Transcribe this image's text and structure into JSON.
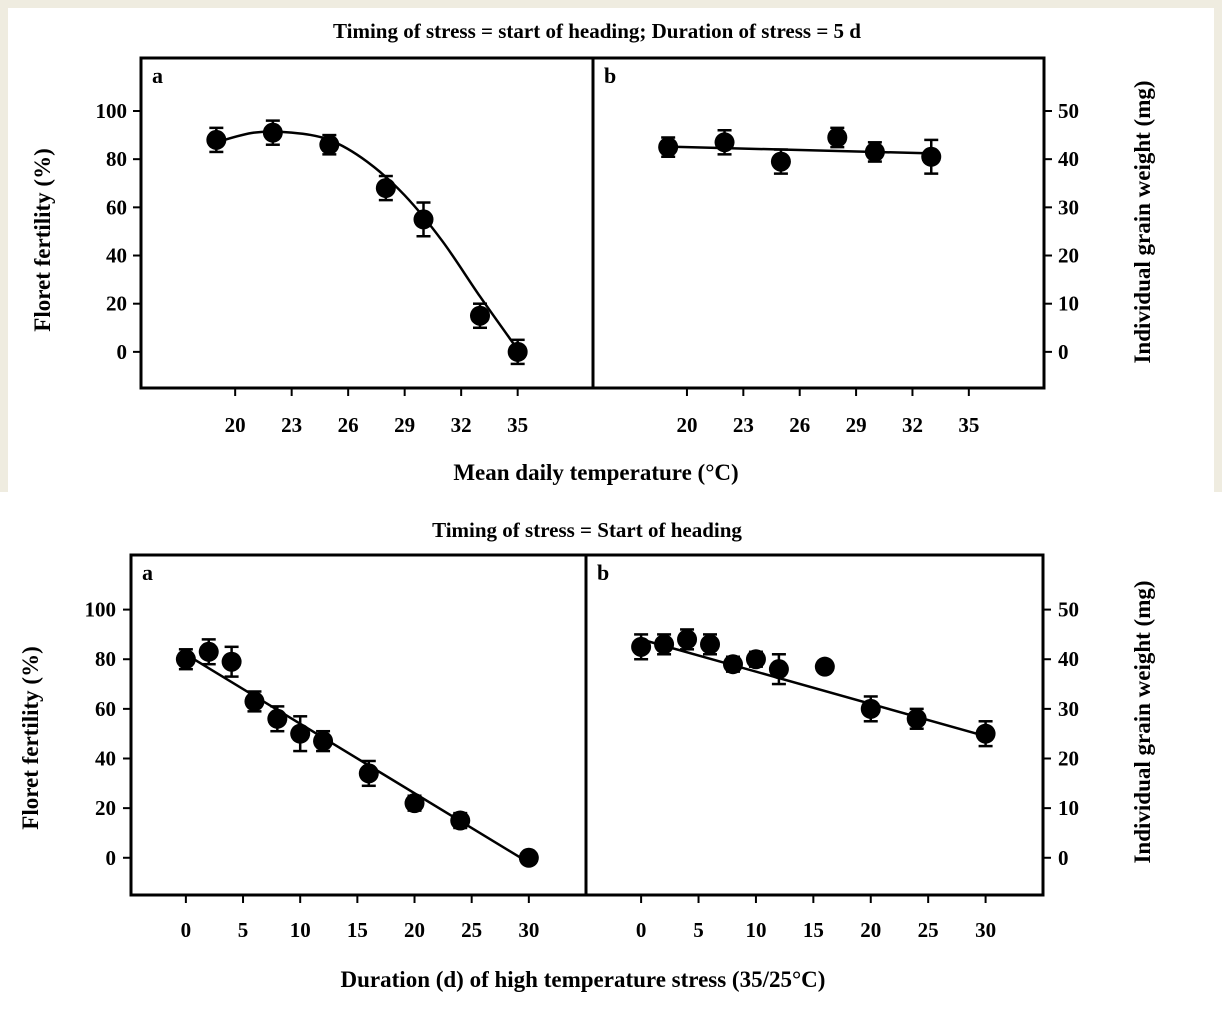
{
  "colors": {
    "background_top": "#efece0",
    "ink": "#000000"
  },
  "chart_data": [
    {
      "type": "scatter",
      "title": "Timing of stress = start of heading; Duration of stress = 5 d",
      "xlabel": "Mean daily temperature (°C)",
      "ylabel_left": "Floret fertility (%)",
      "ylabel_right": "Individual grain weight (mg)",
      "panels": [
        {
          "label": "a",
          "xlim": [
            15,
            39
          ],
          "ylim": [
            -15,
            122
          ],
          "xticks": [
            20,
            23,
            26,
            29,
            32,
            35
          ],
          "yticks": [
            0,
            20,
            40,
            60,
            80,
            100
          ],
          "series": [
            {
              "x": [
                19,
                22,
                25,
                28,
                30,
                33,
                35
              ],
              "y": [
                88,
                91,
                86,
                68,
                55,
                15,
                0
              ],
              "err": [
                5,
                5,
                4,
                5,
                7,
                5,
                5
              ]
            }
          ],
          "fit": {
            "x": [
              19,
              21,
              23,
              25,
              27,
              29,
              31,
              33,
              35
            ],
            "y": [
              87,
              91,
              91,
              88,
              79,
              65,
              46,
              23,
              1
            ]
          }
        },
        {
          "label": "b",
          "xlim": [
            15,
            39
          ],
          "ylim": [
            -7.5,
            61
          ],
          "xticks": [
            20,
            23,
            26,
            29,
            32,
            35
          ],
          "yticks": [
            0,
            10,
            20,
            30,
            40,
            50
          ],
          "series": [
            {
              "x": [
                19,
                22,
                25,
                28,
                30,
                33
              ],
              "y": [
                42.5,
                43.5,
                39.5,
                44.5,
                41.5,
                40.5
              ],
              "err": [
                2,
                2.5,
                2.5,
                2,
                2,
                3.5
              ]
            }
          ],
          "fit": {
            "x": [
              19,
              33
            ],
            "y": [
              42.6,
              41.2
            ]
          }
        }
      ]
    },
    {
      "type": "scatter",
      "title": "Timing of stress = Start of heading",
      "xlabel": "Duration (d) of high temperature stress (35/25°C)",
      "ylabel_left": "Floret fertility (%)",
      "ylabel_right": "Individual grain weight (mg)",
      "panels": [
        {
          "label": "a",
          "xlim": [
            -4.8,
            35
          ],
          "ylim": [
            -15,
            122
          ],
          "xticks": [
            0,
            5,
            10,
            15,
            20,
            25,
            30
          ],
          "yticks": [
            0,
            20,
            40,
            60,
            80,
            100
          ],
          "series": [
            {
              "x": [
                0,
                2,
                4,
                6,
                8,
                10,
                12,
                16,
                20,
                24,
                30
              ],
              "y": [
                80,
                83,
                79,
                63,
                56,
                50,
                47,
                34,
                22,
                15,
                0
              ],
              "err": [
                4,
                5,
                6,
                4,
                5,
                7,
                4,
                5,
                3,
                3,
                2
              ]
            }
          ],
          "fit": {
            "x": [
              0,
              30
            ],
            "y": [
              82,
              -2
            ]
          }
        },
        {
          "label": "b",
          "xlim": [
            -4.8,
            35
          ],
          "ylim": [
            -7.5,
            61
          ],
          "xticks": [
            0,
            5,
            10,
            15,
            20,
            25,
            30
          ],
          "yticks": [
            0,
            10,
            20,
            30,
            40,
            50
          ],
          "series": [
            {
              "x": [
                0,
                2,
                4,
                6,
                8,
                10,
                12,
                16,
                20,
                24,
                30
              ],
              "y": [
                42.5,
                43,
                44,
                43,
                39,
                40,
                38,
                38.5,
                30,
                28,
                25
              ],
              "err": [
                2.5,
                2,
                2,
                2,
                1.5,
                1.5,
                3,
                1,
                2.5,
                2,
                2.5
              ]
            }
          ],
          "fit": {
            "x": [
              0,
              30
            ],
            "y": [
              44,
              24.5
            ]
          }
        }
      ]
    }
  ]
}
